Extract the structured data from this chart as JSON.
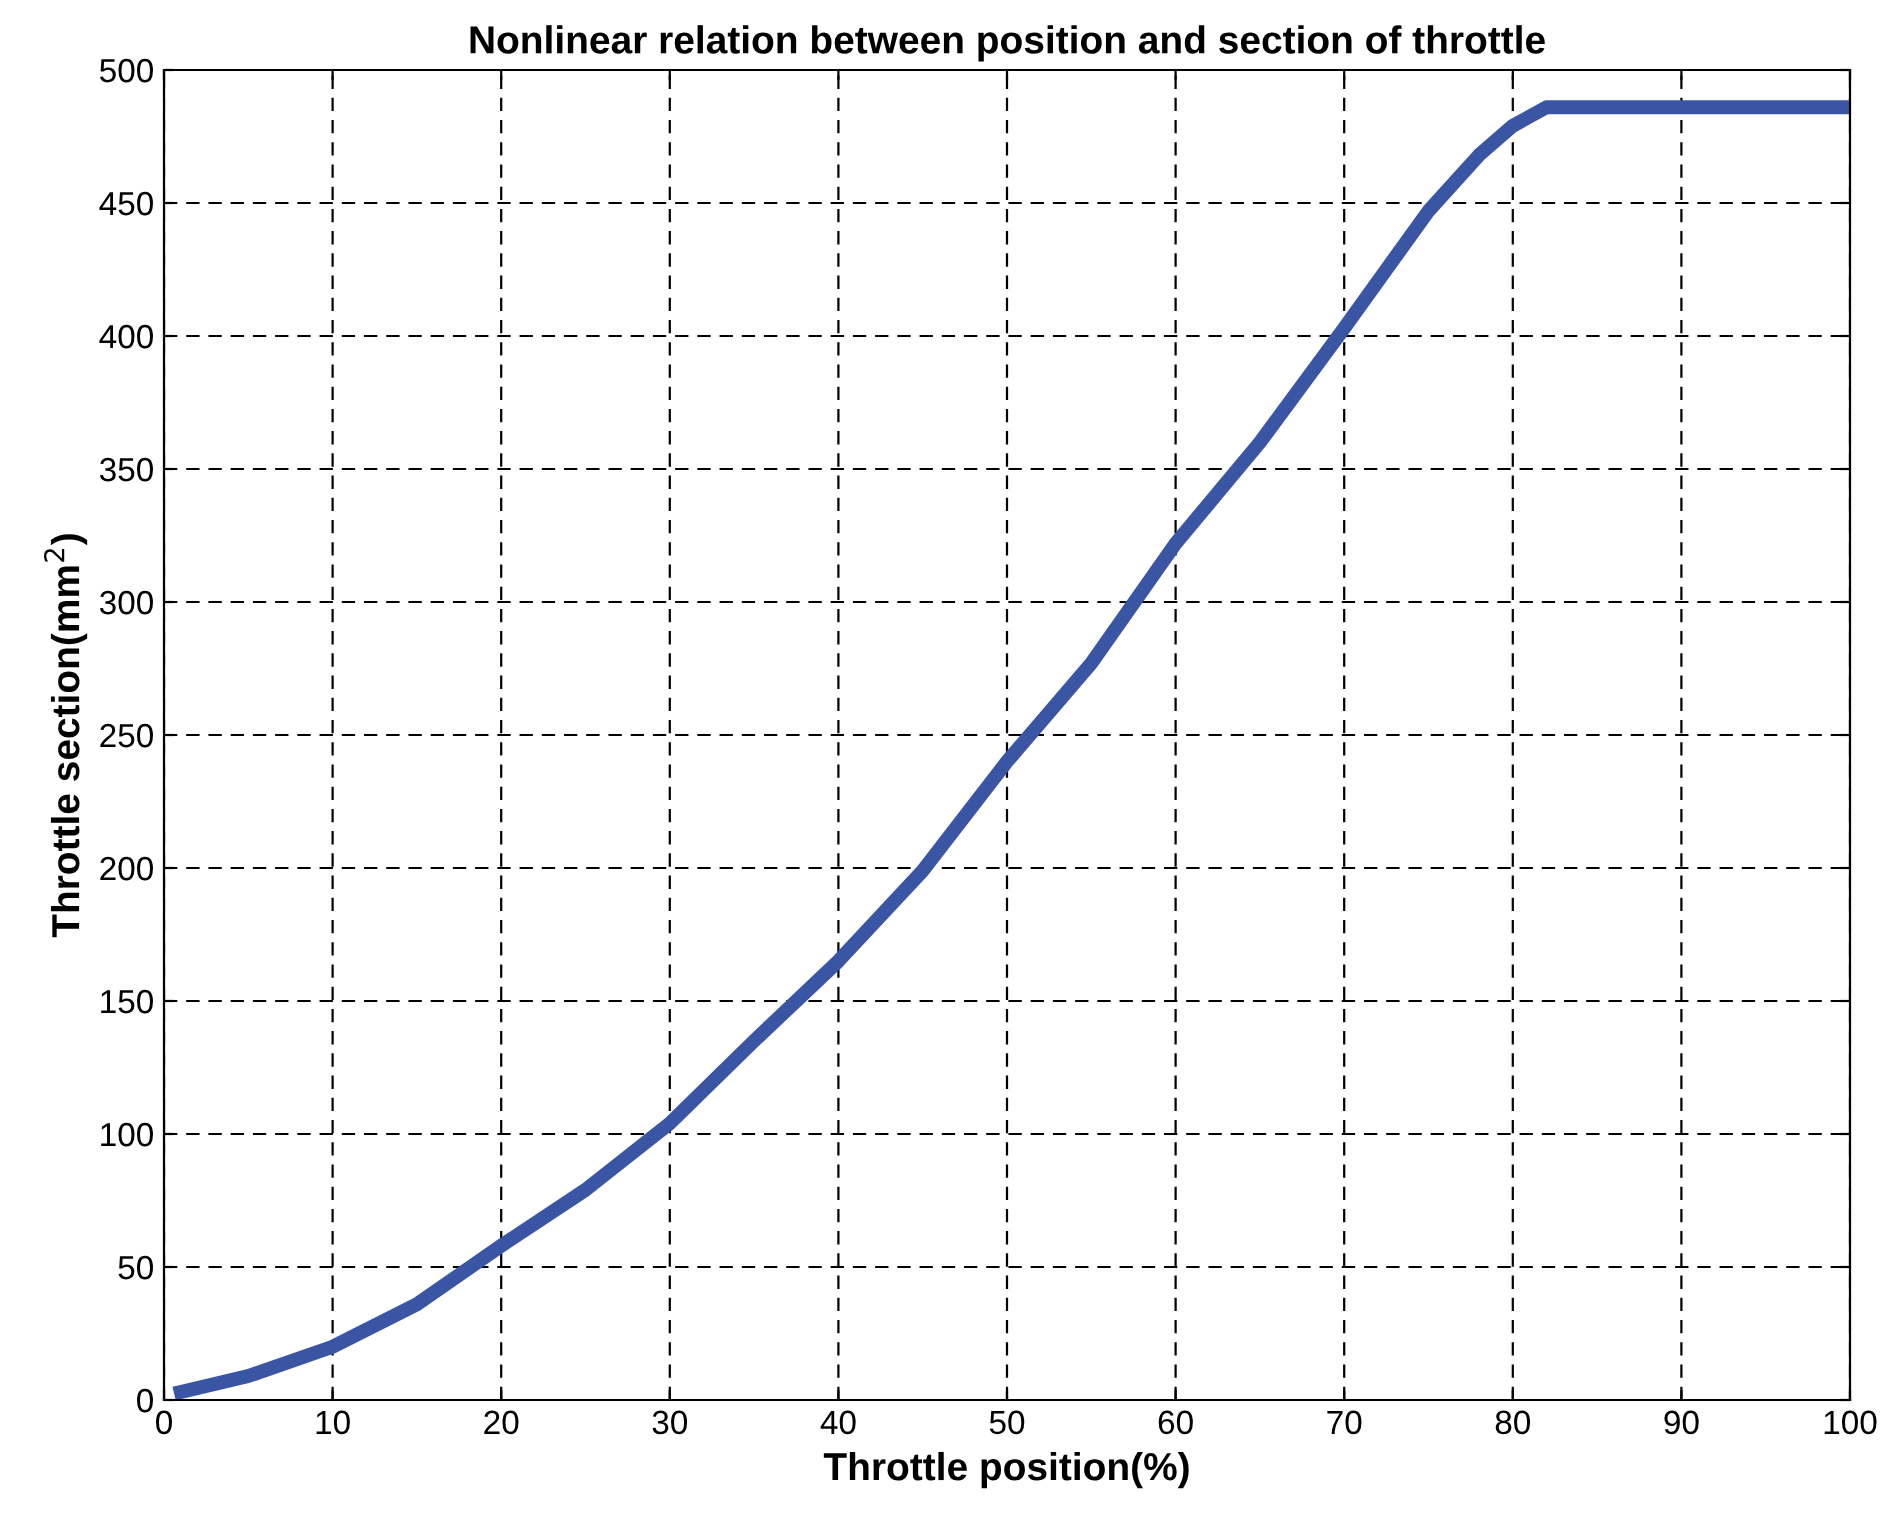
{
  "chart_data": {
    "type": "line",
    "title": "Nonlinear relation between position and section of throttle",
    "xlabel": "Throttle position(%)",
    "ylabel": "Throttle section(mm$^{2}$)",
    "x": [
      1,
      5,
      10,
      15,
      20,
      25,
      30,
      35,
      40,
      45,
      50,
      55,
      60,
      65,
      70,
      75,
      78,
      80,
      82,
      100
    ],
    "series": [
      {
        "color": "#3a55a4",
        "values": [
          3,
          9,
          20,
          36,
          58,
          79,
          104,
          135,
          165,
          199,
          240,
          277,
          322,
          360,
          403,
          447,
          468,
          479,
          486,
          486
        ]
      }
    ],
    "xlim": [
      0,
      100
    ],
    "ylim": [
      0,
      500
    ],
    "xticks": [
      0,
      10,
      20,
      30,
      40,
      50,
      60,
      70,
      80,
      90,
      100
    ],
    "yticks": [
      0,
      50,
      100,
      150,
      200,
      250,
      300,
      350,
      400,
      450,
      500
    ],
    "grid": true,
    "line_style": "solid",
    "marker": "none"
  }
}
